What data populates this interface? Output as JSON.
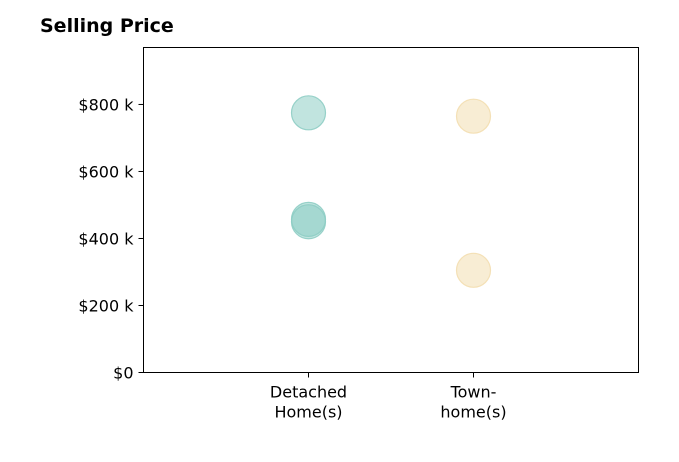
{
  "chart_data": {
    "type": "scatter",
    "title": "Selling Price",
    "xlabel": "",
    "ylabel": "",
    "categories": [
      [
        "Detached",
        "Home(s)"
      ],
      [
        "Town-",
        "home(s)"
      ]
    ],
    "y_ticks": [
      {
        "value": 0,
        "label": "$0"
      },
      {
        "value": 200,
        "label": "$200 k"
      },
      {
        "value": 400,
        "label": "$400 k"
      },
      {
        "value": 600,
        "label": "$600 k"
      },
      {
        "value": 800,
        "label": "$800 k"
      }
    ],
    "ylim": [
      0,
      970
    ],
    "xlim": [
      -1,
      2
    ],
    "grid": false,
    "points": [
      {
        "category_index": 0,
        "value": 775,
        "color": "#8ecdc4",
        "opacity": 0.55
      },
      {
        "category_index": 0,
        "value": 457,
        "color": "#8ecdc4",
        "opacity": 0.55
      },
      {
        "category_index": 0,
        "value": 450,
        "color": "#8ecdc4",
        "opacity": 0.55
      },
      {
        "category_index": 1,
        "value": 765,
        "color": "#f3deb0",
        "opacity": 0.55
      },
      {
        "category_index": 1,
        "value": 305,
        "color": "#f3deb0",
        "opacity": 0.55
      }
    ]
  }
}
